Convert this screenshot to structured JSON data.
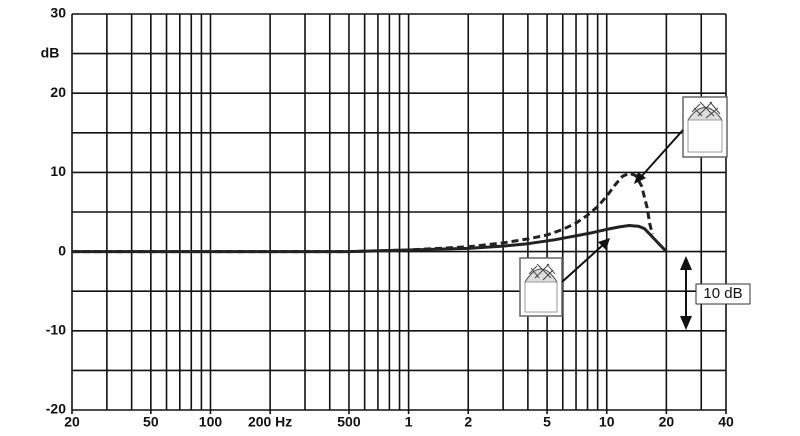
{
  "chart_data": {
    "type": "line",
    "y_label": "dB",
    "annotation": "10 dB",
    "xlim": [
      20,
      40000
    ],
    "ylim": [
      -20,
      30
    ],
    "log_x": true,
    "xticks": [
      20,
      50,
      100,
      {
        "value": 200,
        "label": "200 Hz"
      },
      500,
      {
        "value": 1000,
        "label": "1"
      },
      {
        "value": 2000,
        "label": "2"
      },
      {
        "value": 5000,
        "label": "5"
      },
      {
        "value": 10000,
        "label": "10"
      },
      {
        "value": 20000,
        "label": "20"
      },
      {
        "value": 40000,
        "label": "40"
      }
    ],
    "yticks": [
      -20,
      -10,
      0,
      10,
      20,
      30
    ],
    "xgrid": [
      20,
      30,
      40,
      50,
      60,
      70,
      80,
      90,
      100,
      200,
      300,
      400,
      500,
      600,
      700,
      800,
      900,
      1000,
      2000,
      3000,
      4000,
      5000,
      6000,
      7000,
      8000,
      9000,
      10000,
      20000,
      30000,
      40000
    ],
    "ygrid": [
      -20,
      -15,
      -10,
      -5,
      0,
      5,
      10,
      15,
      20,
      25,
      30
    ],
    "series": [
      {
        "name": "solid",
        "color": "#222222",
        "dash": false,
        "x": [
          20,
          100,
          500,
          1000,
          2000,
          3000,
          4000,
          5500,
          7000,
          8500,
          10000,
          11500,
          13000,
          14500,
          15500,
          16500,
          18000,
          20000
        ],
        "values": [
          0,
          0,
          0,
          0.2,
          0.4,
          0.7,
          1.0,
          1.5,
          2.0,
          2.4,
          2.8,
          3.1,
          3.3,
          3.2,
          2.9,
          2.2,
          1.2,
          0
        ]
      },
      {
        "name": "dashed",
        "color": "#222222",
        "dash": true,
        "x": [
          20,
          100,
          500,
          1000,
          2000,
          3000,
          4000,
          5000,
          6000,
          7000,
          8000,
          9000,
          10000,
          11000,
          12000,
          13000,
          14000,
          15000,
          16000,
          16500,
          17000
        ],
        "values": [
          0,
          0,
          0,
          0.2,
          0.6,
          1.1,
          1.6,
          2.1,
          2.8,
          3.6,
          4.6,
          5.7,
          7.0,
          8.4,
          9.5,
          9.9,
          9.6,
          8.3,
          5.5,
          3.5,
          2.2
        ]
      }
    ]
  }
}
